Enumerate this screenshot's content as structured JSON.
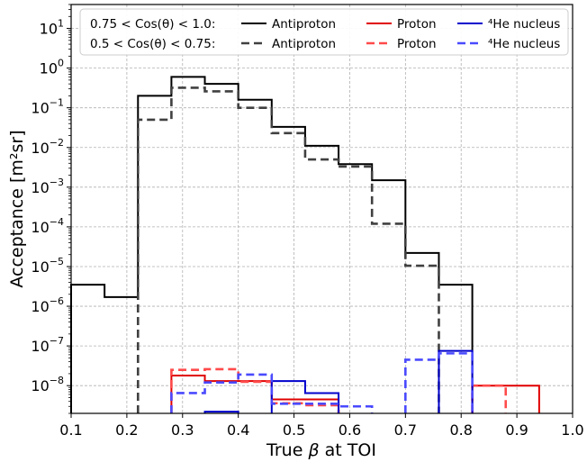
{
  "chart_data": {
    "type": "step",
    "xlabel": "True β at TOI",
    "ylabel": "Acceptance [m²sr]",
    "xlim": [
      0.1,
      1.0
    ],
    "ylim": [
      2e-09,
      40
    ],
    "y_scale": "log",
    "grid": true,
    "x_ticks": [
      "0.1",
      "0.2",
      "0.3",
      "0.4",
      "0.5",
      "0.6",
      "0.7",
      "0.8",
      "0.9",
      "1.0"
    ],
    "y_tick_exponents": [
      "1",
      "0",
      "-1",
      "-2",
      "-3",
      "-4",
      "-5",
      "-6",
      "-7",
      "-8"
    ],
    "legend": {
      "placement": "top",
      "rows": [
        {
          "label": "0.75 < Cos(θ) < 1.0:",
          "entries": [
            "Antiproton",
            "Proton",
            "⁴He nucleus"
          ]
        },
        {
          "label": "0.5 < Cos(θ) < 0.75:",
          "entries": [
            "Antiproton",
            "Proton",
            "⁴He nucleus"
          ]
        }
      ]
    },
    "series": [
      {
        "name": "Antiproton",
        "group": "0.75 < Cos(θ) < 1.0",
        "color": "#000000",
        "style": "solid",
        "bins": [
          [
            0.1,
            0.16,
            3.5e-06
          ],
          [
            0.16,
            0.22,
            1.7e-06
          ],
          [
            0.22,
            0.28,
            0.2
          ],
          [
            0.28,
            0.34,
            0.6
          ],
          [
            0.34,
            0.4,
            0.4
          ],
          [
            0.4,
            0.46,
            0.16
          ],
          [
            0.46,
            0.52,
            0.033
          ],
          [
            0.52,
            0.58,
            0.011
          ],
          [
            0.58,
            0.64,
            0.0038
          ],
          [
            0.64,
            0.7,
            0.0015
          ],
          [
            0.7,
            0.76,
            2.2e-05
          ],
          [
            0.76,
            0.82,
            3.5e-06
          ]
        ]
      },
      {
        "name": "Antiproton",
        "group": "0.5 < Cos(θ) < 0.75",
        "color": "#404040",
        "style": "dashed",
        "bins": [
          [
            0.22,
            0.28,
            0.05
          ],
          [
            0.28,
            0.34,
            0.32
          ],
          [
            0.34,
            0.4,
            0.26
          ],
          [
            0.4,
            0.46,
            0.1
          ],
          [
            0.46,
            0.52,
            0.023
          ],
          [
            0.52,
            0.58,
            0.005
          ],
          [
            0.58,
            0.64,
            0.0033
          ],
          [
            0.64,
            0.7,
            0.00012
          ],
          [
            0.7,
            0.76,
            1.05e-05
          ]
        ]
      },
      {
        "name": "Proton",
        "group": "0.75 < Cos(θ) < 1.0",
        "color": "#e00000",
        "style": "solid",
        "bins": [
          [
            0.28,
            0.34,
            1.8e-08
          ],
          [
            0.34,
            0.4,
            1.3e-08
          ],
          [
            0.4,
            0.46,
            1.3e-08
          ],
          [
            0.46,
            0.52,
            4.5e-09
          ],
          [
            0.52,
            0.58,
            4.5e-09
          ],
          [
            0.82,
            0.94,
            1e-08
          ]
        ]
      },
      {
        "name": "Proton",
        "group": "0.5 < Cos(θ) < 0.75",
        "color": "#ff4a4a",
        "style": "dashed",
        "bins": [
          [
            0.28,
            0.34,
            2.5e-08
          ],
          [
            0.34,
            0.4,
            2.6e-08
          ],
          [
            0.4,
            0.46,
            1.25e-08
          ],
          [
            0.46,
            0.52,
            3.6e-09
          ],
          [
            0.52,
            0.58,
            3.2e-09
          ],
          [
            0.82,
            0.88,
            1e-08
          ]
        ]
      },
      {
        "name": "⁴He nucleus",
        "group": "0.75 < Cos(θ) < 1.0",
        "color": "#0000cc",
        "style": "solid",
        "bins": [
          [
            0.34,
            0.4,
            2.2e-09
          ],
          [
            0.46,
            0.52,
            1.3e-08
          ],
          [
            0.52,
            0.58,
            6.5e-09
          ],
          [
            0.76,
            0.82,
            7.5e-08
          ]
        ]
      },
      {
        "name": "⁴He nucleus",
        "group": "0.5 < Cos(θ) < 0.75",
        "color": "#4a4aff",
        "style": "dashed",
        "bins": [
          [
            0.28,
            0.34,
            6.5e-09
          ],
          [
            0.34,
            0.4,
            1.2e-08
          ],
          [
            0.4,
            0.46,
            1.9e-08
          ],
          [
            0.46,
            0.52,
            3.5e-09
          ],
          [
            0.52,
            0.58,
            3.5e-09
          ],
          [
            0.58,
            0.64,
            3e-09
          ],
          [
            0.7,
            0.76,
            4.5e-08
          ],
          [
            0.76,
            0.82,
            6.5e-08
          ]
        ]
      }
    ]
  }
}
